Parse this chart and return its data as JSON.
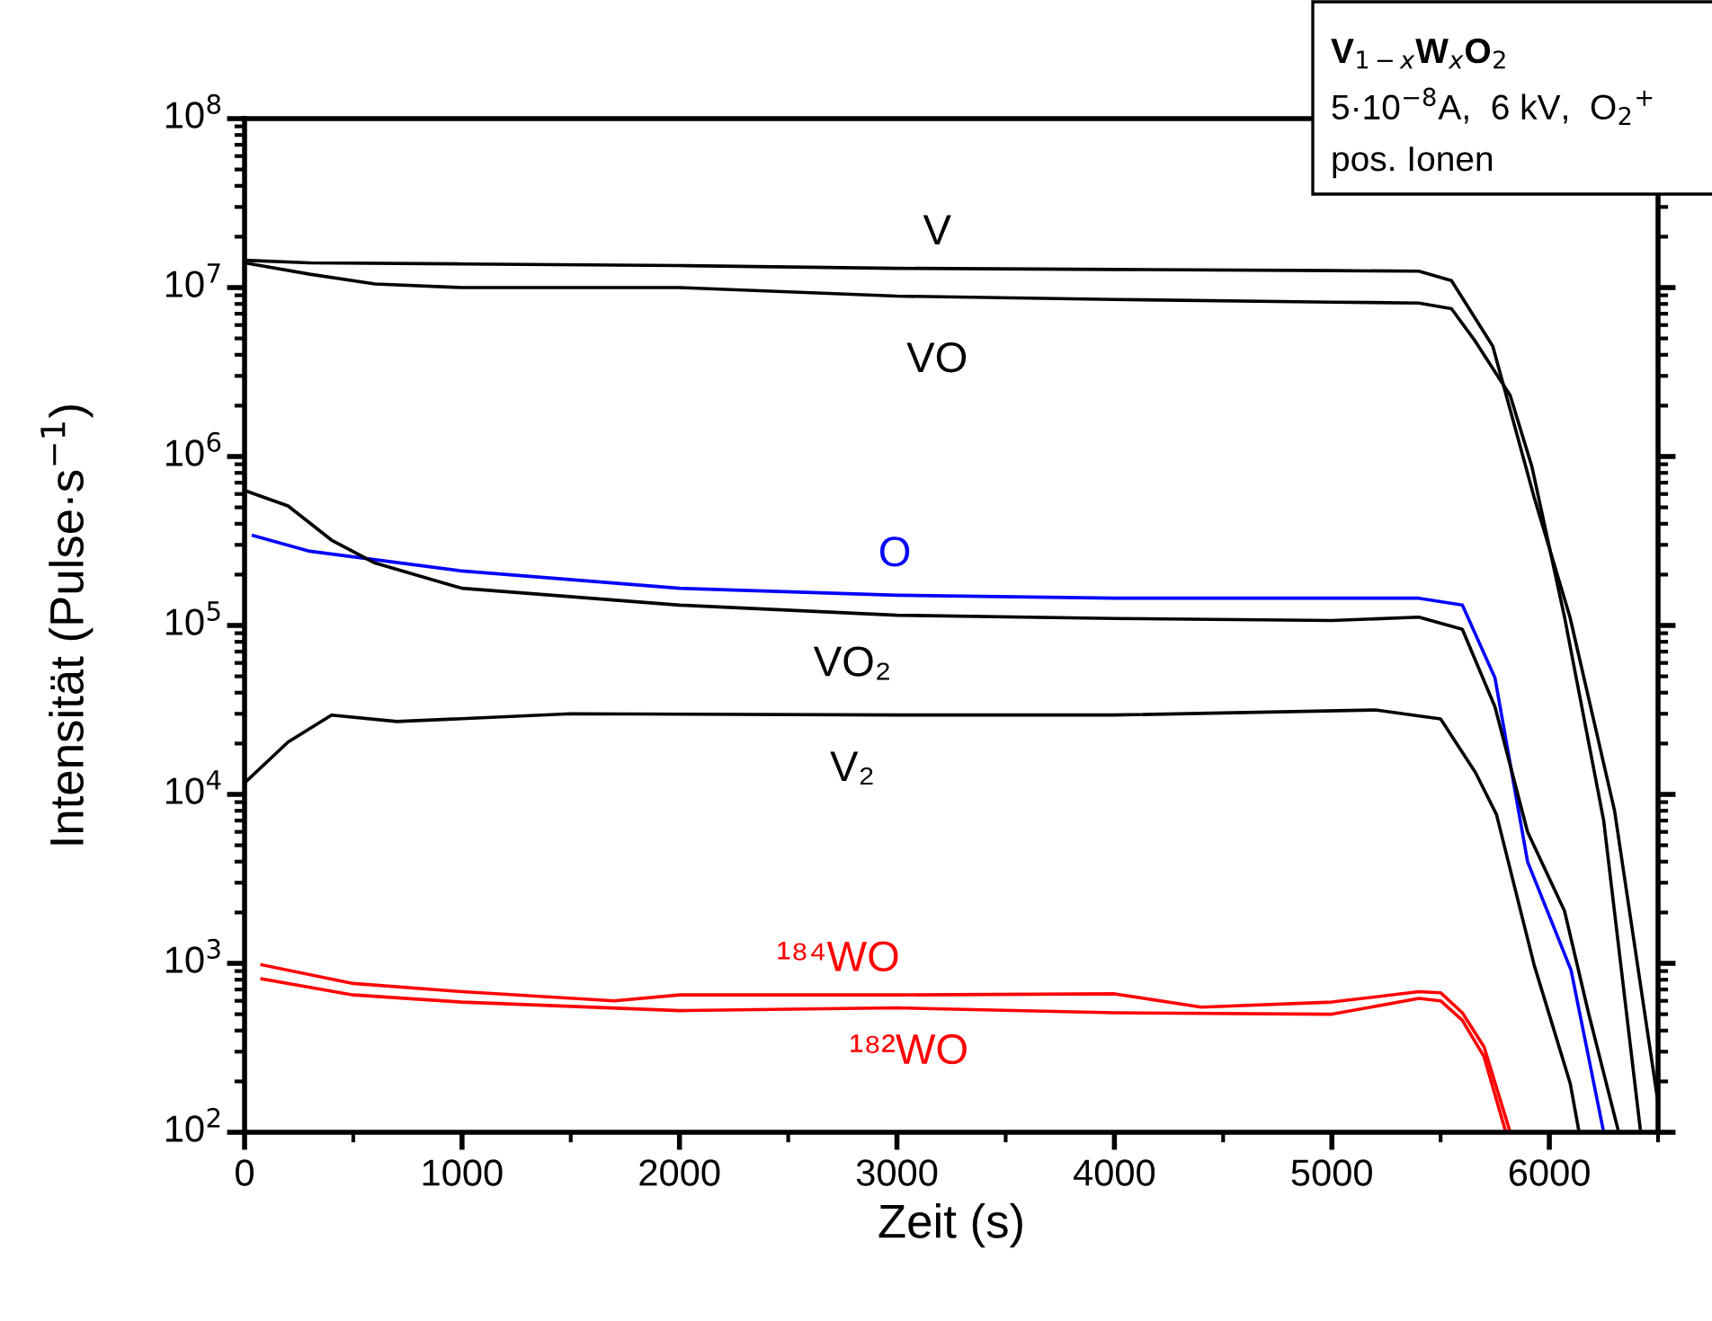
{
  "chart_data": {
    "type": "line",
    "xlabel": "Zeit (s)",
    "ylabel": "Intensität (Pulse·s$^{−1}$)",
    "log": "y",
    "xlim": [
      0,
      6500
    ],
    "xticks": [
      0,
      1000,
      2000,
      3000,
      4000,
      5000,
      6000
    ],
    "ylim": [
      100,
      100000000
    ],
    "yticks": [
      {
        "value": 100,
        "label": "10$^{2}$"
      },
      {
        "value": 1000,
        "label": "10$^{3}$"
      },
      {
        "value": 10000,
        "label": "10$^{4}$"
      },
      {
        "value": 100000,
        "label": "10$^{5}$"
      },
      {
        "value": 1000000,
        "label": "10$^{6}$"
      },
      {
        "value": 10000000,
        "label": "10$^{7}$"
      },
      {
        "value": 100000000,
        "label": "10$^{8}$"
      }
    ],
    "grid": false,
    "legend": false,
    "marker": "none",
    "line_style": "solid",
    "annotations": [
      "V$_{1−x}$W$_{x}$O$_{2}$",
      "5·10$^{−8}$A,  6 kV,  O$_{2}$$^{+}$",
      "pos. Ionen"
    ],
    "series": [
      {
        "name": "V",
        "color": "#000000",
        "x": [
          0,
          300,
          1000,
          2000,
          3000,
          4000,
          5000,
          5400,
          5550,
          5740,
          5930,
          6095,
          6300,
          6500
        ],
        "values": [
          14500000,
          14000000,
          13800000,
          13500000,
          13000000,
          12800000,
          12600000,
          12500000,
          11000000,
          4500000,
          575000,
          112000,
          8000,
          150
        ]
      },
      {
        "name": "VO",
        "color": "#000000",
        "x": [
          0,
          300,
          600,
          1000,
          2000,
          3000,
          4000,
          5000,
          5400,
          5550,
          5660,
          5820,
          5920,
          6070,
          6250,
          6420
        ],
        "values": [
          14000000,
          12000000,
          10500000,
          10000000,
          10000000,
          8900000,
          8500000,
          8200000,
          8100000,
          7500000,
          4800000,
          2300000,
          870000,
          112000,
          7000,
          100
        ]
      },
      {
        "name": "O",
        "color": "#0000ff",
        "x": [
          40,
          300,
          1000,
          2000,
          3000,
          4000,
          5000,
          5400,
          5600,
          5750,
          5900,
          6100,
          6250
        ],
        "values": [
          340000,
          275000,
          210000,
          166000,
          151000,
          145000,
          145000,
          145000,
          132000,
          49000,
          4000,
          910,
          100
        ]
      },
      {
        "name": "VO₂",
        "color": "#000000",
        "x": [
          0,
          200,
          400,
          600,
          1000,
          2000,
          3000,
          4000,
          5000,
          5400,
          5600,
          5750,
          5900,
          6070,
          6180,
          6319
        ],
        "values": [
          630000,
          510000,
          320000,
          234000,
          166000,
          132000,
          115000,
          110000,
          107000,
          112000,
          95000,
          33000,
          6000,
          2040,
          510,
          100
        ]
      },
      {
        "name": "V₂",
        "color": "#000000",
        "x": [
          0,
          200,
          400,
          700,
          1500,
          3000,
          4000,
          5200,
          5500,
          5660,
          5757,
          5930,
          6096,
          6137
        ],
        "values": [
          11700.0,
          20400,
          29500,
          27000,
          30000,
          29500,
          29500,
          31600,
          28000,
          13500,
          7600,
          980,
          195,
          100
        ]
      },
      {
        "name": "¹⁸⁴WO",
        "color": "#ff0000",
        "x": [
          80,
          500,
          1000,
          1700,
          2000,
          3000,
          4000,
          4400,
          5000,
          5400,
          5500,
          5600,
          5700,
          5820
        ],
        "values": [
          980,
          760,
          680,
          600,
          650,
          650,
          660,
          550,
          590,
          680,
          670,
          510,
          320,
          100
        ]
      },
      {
        "name": "¹⁸²WO",
        "color": "#ff0000",
        "x": [
          80,
          500,
          1000,
          2000,
          3000,
          4000,
          5000,
          5400,
          5500,
          5600,
          5700,
          5800
        ],
        "values": [
          810,
          650,
          590,
          525,
          545,
          510,
          500,
          620,
          600,
          460,
          280,
          100
        ]
      }
    ]
  }
}
